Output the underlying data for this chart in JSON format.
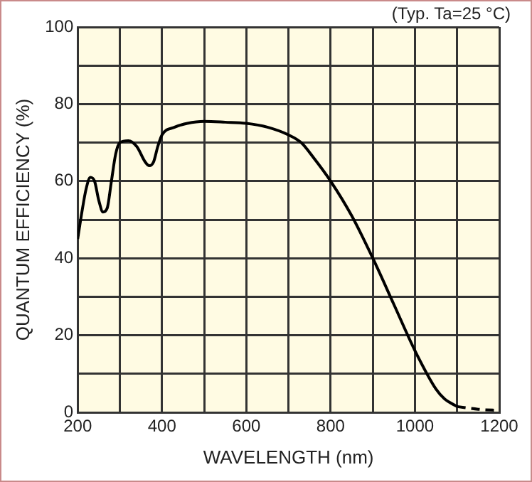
{
  "chart_data": {
    "type": "line",
    "xlabel": "WAVELENGTH (nm)",
    "ylabel": "QUANTUM EFFICIENCY (%)",
    "annotations": [
      "(Typ. Ta=25 °C)"
    ],
    "xlim": [
      200,
      1200
    ],
    "ylim": [
      0,
      100
    ],
    "xticks": [
      200,
      {
        "value": 300,
        "label": null
      },
      400,
      {
        "value": 500,
        "label": null
      },
      600,
      {
        "value": 700,
        "label": null
      },
      800,
      {
        "value": 900,
        "label": null
      },
      1000,
      {
        "value": 1100,
        "label": null
      },
      1200
    ],
    "yticks": [
      0,
      {
        "value": 10,
        "label": null
      },
      20,
      {
        "value": 30,
        "label": null
      },
      40,
      {
        "value": 50,
        "label": null
      },
      60,
      {
        "value": 70,
        "label": null
      },
      80,
      {
        "value": 90,
        "label": null
      },
      100
    ],
    "grid": true,
    "legend": false,
    "marker": "none",
    "series": [
      {
        "color": "#000000",
        "line_style": "solid",
        "x": [
          200,
          210,
          220,
          230,
          240,
          250,
          260,
          270,
          280,
          290,
          300,
          320,
          340,
          360,
          370,
          380,
          390,
          400,
          430,
          460,
          500,
          550,
          600,
          650,
          700,
          730,
          760,
          800,
          850,
          900,
          950,
          1000,
          1050,
          1070,
          1100
        ],
        "values": [
          45,
          52,
          58,
          61,
          60,
          55,
          52,
          53,
          60,
          67,
          70,
          70.5,
          69,
          65,
          64,
          65,
          69,
          72,
          74,
          75,
          75.5,
          75.3,
          75,
          74,
          72,
          70,
          66,
          60,
          51,
          40,
          28,
          16,
          6,
          3.5,
          1.5
        ]
      },
      {
        "color": "#000000",
        "line_style": "dashed",
        "x": [
          1100,
          1150,
          1200
        ],
        "values": [
          1.5,
          0.8,
          0.5
        ]
      }
    ]
  }
}
